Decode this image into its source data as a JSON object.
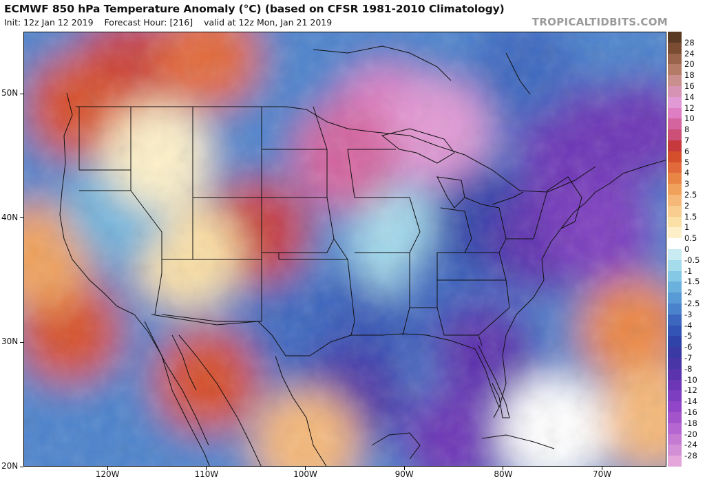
{
  "header": {
    "title": "ECMWF 850 hPa Temperature Anomaly (°C) (based on CFSR 1981-2010 Climatology)",
    "init": "Init: 12z Jan 12 2019",
    "forecast_hour": "Forecast Hour: [216]",
    "valid": "valid at 12z Mon, Jan 21 2019",
    "brand": "TROPICALTIDBITS.COM"
  },
  "map": {
    "projection": "equirectangular",
    "lon_range": [
      -128.5,
      -63.5
    ],
    "lat_range": [
      20,
      55
    ],
    "lat_ticks": [
      "50N",
      "40N",
      "30N",
      "20N"
    ],
    "lon_ticks": [
      "120W",
      "110W",
      "100W",
      "90W",
      "80W",
      "70W"
    ],
    "overlay": "country, US state and coastline boundaries"
  },
  "colorbar": {
    "labels": [
      "28",
      "24",
      "20",
      "18",
      "16",
      "14",
      "12",
      "10",
      "8",
      "7",
      "6",
      "5",
      "4",
      "3",
      "2.5",
      "2",
      "1.5",
      "1",
      "0.5",
      "0",
      "-0.5",
      "-1",
      "-1.5",
      "-2",
      "-2.5",
      "-3",
      "-4",
      "-5",
      "-6",
      "-7",
      "-8",
      "-10",
      "-12",
      "-14",
      "-16",
      "-18",
      "-20",
      "-24",
      "-28"
    ],
    "colors": [
      "#5b3a23",
      "#7a4d33",
      "#99644b",
      "#b47b67",
      "#c98f8c",
      "#d793b3",
      "#e29ad4",
      "#df7ec3",
      "#d4649e",
      "#cc4f78",
      "#c63a3d",
      "#d64f2c",
      "#e2693a",
      "#ea8645",
      "#f0a15b",
      "#f5b878",
      "#f9cd8f",
      "#fbe0a6",
      "#fdf0c8",
      "#ffffff",
      "#c9ecf2",
      "#a5dcec",
      "#85c8e6",
      "#6ab2dd",
      "#589ad5",
      "#4b82cc",
      "#3d67bf",
      "#3454b5",
      "#2f43a8",
      "#3b3aa4",
      "#4a35a7",
      "#5b33ad",
      "#6c36b6",
      "#7d3ebf",
      "#9046c6",
      "#a354cb",
      "#b666d0",
      "#c67bd3",
      "#d390d6",
      "#e5a6dc"
    ]
  },
  "chart_data": {
    "type": "heatmap",
    "title": "ECMWF 850 hPa Temperature Anomaly (°C) (based on CFSR 1981-2010 Climatology)",
    "variable": "850 hPa temperature anomaly",
    "units": "°C",
    "x_range_lon": [
      -128.5,
      -63.5
    ],
    "y_range_lat": [
      20,
      55
    ],
    "color_levels": [
      28,
      24,
      20,
      18,
      16,
      14,
      12,
      10,
      8,
      7,
      6,
      5,
      4,
      3,
      2.5,
      2,
      1.5,
      1,
      0.5,
      0,
      -0.5,
      -1,
      -1.5,
      -2,
      -2.5,
      -3,
      -4,
      -5,
      -6,
      -7,
      -8,
      -10,
      -12,
      -14,
      -16,
      -18,
      -20,
      -24,
      -28
    ],
    "features": [
      {
        "lon": -92,
        "lat": 48,
        "anomaly": 10
      },
      {
        "lon": -87,
        "lat": 47,
        "anomaly": 12
      },
      {
        "lon": -96,
        "lat": 45,
        "anomaly": 8
      },
      {
        "lon": -118,
        "lat": 52,
        "anomaly": 6
      },
      {
        "lon": -123,
        "lat": 49,
        "anomaly": 5
      },
      {
        "lon": -105,
        "lat": 39,
        "anomaly": 6
      },
      {
        "lon": -112,
        "lat": 37,
        "anomaly": 1
      },
      {
        "lon": -124,
        "lat": 31,
        "anomaly": 5
      },
      {
        "lon": -110,
        "lat": 27,
        "anomaly": 5
      },
      {
        "lon": -127,
        "lat": 37,
        "anomaly": 2.5
      },
      {
        "lon": -119,
        "lat": 41,
        "anomaly": -2
      },
      {
        "lon": -115,
        "lat": 45,
        "anomaly": 0.5
      },
      {
        "lon": -101,
        "lat": 31,
        "anomaly": -4
      },
      {
        "lon": -95,
        "lat": 26,
        "anomaly": -8
      },
      {
        "lon": -92,
        "lat": 33,
        "anomaly": -5
      },
      {
        "lon": -90,
        "lat": 38,
        "anomaly": -1
      },
      {
        "lon": -85,
        "lat": 34,
        "anomaly": -4
      },
      {
        "lon": -82,
        "lat": 40,
        "anomaly": -6
      },
      {
        "lon": -76,
        "lat": 38,
        "anomaly": -10
      },
      {
        "lon": -73,
        "lat": 43,
        "anomaly": -12
      },
      {
        "lon": -70,
        "lat": 39,
        "anomaly": -14
      },
      {
        "lon": -82,
        "lat": 29,
        "anomaly": -10
      },
      {
        "lon": -85,
        "lat": 22,
        "anomaly": -12
      },
      {
        "lon": -74,
        "lat": 47,
        "anomaly": -12
      },
      {
        "lon": -78,
        "lat": 52,
        "anomaly": -4
      },
      {
        "lon": -66,
        "lat": 47,
        "anomaly": -12
      },
      {
        "lon": -67,
        "lat": 31,
        "anomaly": 3
      },
      {
        "lon": -65,
        "lat": 24,
        "anomaly": 2
      },
      {
        "lon": -75,
        "lat": 23,
        "anomaly": 0
      },
      {
        "lon": -102,
        "lat": 53,
        "anomaly": -3
      },
      {
        "lon": -110,
        "lat": 53,
        "anomaly": 4
      },
      {
        "lon": -100,
        "lat": 22,
        "anomaly": 2
      }
    ]
  }
}
